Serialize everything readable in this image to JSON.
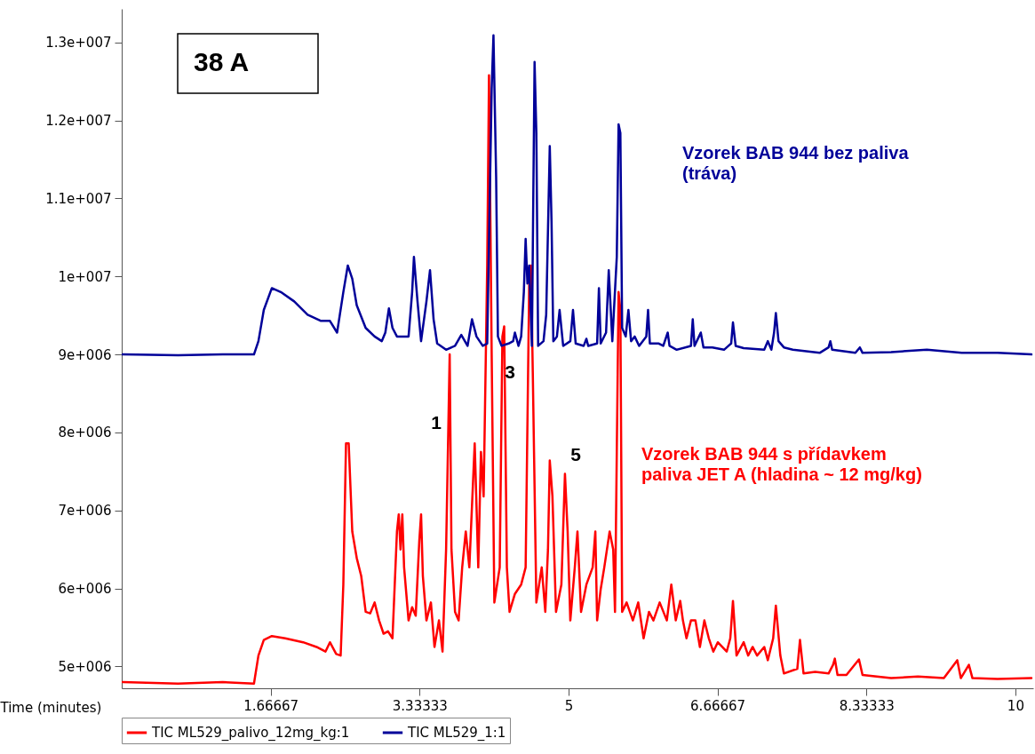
{
  "chart_data": {
    "type": "line",
    "xlabel": "Time (minutes)",
    "legend": "bottom",
    "xlim": [
      0,
      10.2
    ],
    "xticks": [
      1.66667,
      3.33333,
      5,
      6.66667,
      8.33333,
      10
    ],
    "ylim": [
      4720000.0,
      13430000.0
    ],
    "yticks": [
      {
        "value": 5000000.0,
        "label": "5e+006"
      },
      {
        "value": 6000000.0,
        "label": "6e+006"
      },
      {
        "value": 7000000.0,
        "label": "7e+006"
      },
      {
        "value": 8000000.0,
        "label": "8e+006"
      },
      {
        "value": 9000000.0,
        "label": "9e+006"
      },
      {
        "value": 10000000.0,
        "label": "1e+007"
      },
      {
        "value": 11000000.0,
        "label": "1.1e+007"
      },
      {
        "value": 12000000.0,
        "label": "1.2e+007"
      },
      {
        "value": 13000000.0,
        "label": "1.3e+007"
      }
    ],
    "annotations": [
      "38 A",
      "Vzorek BAB 944 bez paliva\n(tráva)",
      "Vzorek BAB 944 s přídavkem\npaliva JET A (hladina ~ 12 mg/kg)",
      "1",
      "3",
      "5"
    ],
    "series": [
      {
        "name": "TIC ML529_palivo_12mg_kg:1",
        "color": "#ff0000",
        "x": [
          0.01,
          0.63,
          1.13,
          1.48,
          1.53,
          1.59,
          1.68,
          1.83,
          2.03,
          2.18,
          2.28,
          2.33,
          2.4,
          2.45,
          2.48,
          2.51,
          2.54,
          2.58,
          2.63,
          2.68,
          2.73,
          2.78,
          2.83,
          2.88,
          2.93,
          2.98,
          3.03,
          3.08,
          3.1,
          3.12,
          3.14,
          3.16,
          3.21,
          3.25,
          3.29,
          3.33,
          3.35,
          3.37,
          3.41,
          3.46,
          3.5,
          3.55,
          3.59,
          3.63,
          3.67,
          3.69,
          3.73,
          3.77,
          3.81,
          3.85,
          3.89,
          3.95,
          3.99,
          4.02,
          4.05,
          4.09,
          4.11,
          4.14,
          4.17,
          4.23,
          4.26,
          4.28,
          4.31,
          4.34,
          4.4,
          4.47,
          4.52,
          4.56,
          4.58,
          4.6,
          4.64,
          4.7,
          4.74,
          4.77,
          4.79,
          4.82,
          4.86,
          4.92,
          4.96,
          4.99,
          5.02,
          5.07,
          5.1,
          5.14,
          5.2,
          5.27,
          5.3,
          5.32,
          5.36,
          5.4,
          5.46,
          5.5,
          5.52,
          5.56,
          5.58,
          5.6,
          5.65,
          5.72,
          5.78,
          5.84,
          5.9,
          5.95,
          6.02,
          6.1,
          6.15,
          6.2,
          6.25,
          6.28,
          6.32,
          6.37,
          6.42,
          6.47,
          6.52,
          6.57,
          6.62,
          6.67,
          6.72,
          6.77,
          6.81,
          6.84,
          6.88,
          6.96,
          7.01,
          7.06,
          7.11,
          7.19,
          7.23,
          7.29,
          7.32,
          7.37,
          7.41,
          7.56,
          7.59,
          7.63,
          7.76,
          7.91,
          7.96,
          7.98,
          8.01,
          8.11,
          8.25,
          8.29,
          8.61,
          8.91,
          9.2,
          9.35,
          9.39,
          9.48,
          9.52,
          9.8,
          10.18
        ],
        "values": [
          4800000.0,
          4780000.0,
          4800000.0,
          4780000.0,
          5140000.0,
          5340000.0,
          5390000.0,
          5360000.0,
          5310000.0,
          5250000.0,
          5190000.0,
          5310000.0,
          5160000.0,
          5140000.0,
          6050000.0,
          7860000.0,
          7860000.0,
          6730000.0,
          6390000.0,
          6160000.0,
          5700000.0,
          5680000.0,
          5820000.0,
          5590000.0,
          5420000.0,
          5450000.0,
          5360000.0,
          6730000.0,
          6950000.0,
          6500000.0,
          6950000.0,
          6270000.0,
          5590000.0,
          5760000.0,
          5650000.0,
          6610000.0,
          6950000.0,
          6160000.0,
          5590000.0,
          5820000.0,
          5250000.0,
          5590000.0,
          5190000.0,
          6500000.0,
          9000000.0,
          6500000.0,
          5700000.0,
          5590000.0,
          6270000.0,
          6730000.0,
          6270000.0,
          7860000.0,
          6270000.0,
          7750000.0,
          7180000.0,
          10140000.0,
          12580000.0,
          9000000.0,
          5820000.0,
          6270000.0,
          9230000.0,
          9360000.0,
          6270000.0,
          5700000.0,
          5930000.0,
          6050000.0,
          6270000.0,
          9910000.0,
          10140000.0,
          8770000.0,
          5820000.0,
          6270000.0,
          5700000.0,
          6500000.0,
          7640000.0,
          7180000.0,
          5700000.0,
          6050000.0,
          7470000.0,
          6730000.0,
          5590000.0,
          6270000.0,
          6730000.0,
          5700000.0,
          6050000.0,
          6270000.0,
          6730000.0,
          5590000.0,
          5990000.0,
          6270000.0,
          6730000.0,
          6500000.0,
          5700000.0,
          9800000.0,
          9570000.0,
          5700000.0,
          5820000.0,
          5590000.0,
          5820000.0,
          5360000.0,
          5700000.0,
          5590000.0,
          5820000.0,
          5590000.0,
          6050000.0,
          5590000.0,
          5840000.0,
          5590000.0,
          5360000.0,
          5590000.0,
          5590000.0,
          5250000.0,
          5590000.0,
          5360000.0,
          5190000.0,
          5310000.0,
          5250000.0,
          5190000.0,
          5360000.0,
          5840000.0,
          5140000.0,
          5310000.0,
          5140000.0,
          5250000.0,
          5140000.0,
          5250000.0,
          5080000.0,
          5360000.0,
          5780000.0,
          5140000.0,
          4910000.0,
          4970000.0,
          5340000.0,
          4910000.0,
          4930000.0,
          4910000.0,
          5020000.0,
          5100000.0,
          4890000.0,
          4890000.0,
          5090000.0,
          4890000.0,
          4850000.0,
          4870000.0,
          4850000.0,
          5080000.0,
          4850000.0,
          5020000.0,
          4850000.0,
          4840000.0,
          4850000.0
        ]
      },
      {
        "name": "TIC ML529_1:1",
        "color": "#000099",
        "x": [
          0.01,
          0.63,
          1.13,
          1.48,
          1.53,
          1.59,
          1.68,
          1.78,
          1.93,
          2.08,
          2.23,
          2.33,
          2.41,
          2.48,
          2.53,
          2.58,
          2.63,
          2.73,
          2.83,
          2.91,
          2.95,
          2.99,
          3.03,
          3.08,
          3.21,
          3.25,
          3.27,
          3.31,
          3.35,
          3.41,
          3.45,
          3.49,
          3.53,
          3.63,
          3.73,
          3.8,
          3.87,
          3.92,
          3.97,
          4.04,
          4.09,
          4.14,
          4.16,
          4.19,
          4.21,
          4.25,
          4.33,
          4.38,
          4.4,
          4.44,
          4.47,
          4.5,
          4.52,
          4.54,
          4.56,
          4.59,
          4.62,
          4.64,
          4.66,
          4.72,
          4.75,
          4.79,
          4.81,
          4.83,
          4.87,
          4.9,
          4.94,
          5.02,
          5.05,
          5.08,
          5.17,
          5.2,
          5.22,
          5.32,
          5.34,
          5.36,
          5.42,
          5.45,
          5.49,
          5.54,
          5.56,
          5.58,
          5.6,
          5.64,
          5.67,
          5.7,
          5.74,
          5.79,
          5.87,
          5.89,
          5.91,
          6.01,
          6.06,
          6.11,
          6.13,
          6.21,
          6.37,
          6.39,
          6.41,
          6.46,
          6.48,
          6.51,
          6.61,
          6.74,
          6.79,
          6.82,
          6.84,
          6.87,
          6.96,
          7.19,
          7.23,
          7.27,
          7.3,
          7.32,
          7.35,
          7.41,
          7.51,
          7.81,
          7.91,
          7.93,
          7.95,
          8.21,
          8.26,
          8.29,
          8.61,
          9.01,
          9.4,
          9.8,
          10.18
        ],
        "values": [
          9000000.0,
          8990000.0,
          9000000.0,
          9000000.0,
          9170000.0,
          9570000.0,
          9850000.0,
          9800000.0,
          9680000.0,
          9510000.0,
          9430000.0,
          9430000.0,
          9280000.0,
          9800000.0,
          10140000.0,
          9970000.0,
          9630000.0,
          9340000.0,
          9230000.0,
          9170000.0,
          9280000.0,
          9590000.0,
          9340000.0,
          9230000.0,
          9230000.0,
          9800000.0,
          10250000.0,
          9680000.0,
          9170000.0,
          9680000.0,
          10080000.0,
          9450000.0,
          9140000.0,
          9060000.0,
          9110000.0,
          9250000.0,
          9110000.0,
          9450000.0,
          9230000.0,
          9110000.0,
          9140000.0,
          12410000.0,
          13090000.0,
          11270000.0,
          9230000.0,
          9110000.0,
          9140000.0,
          9170000.0,
          9280000.0,
          9110000.0,
          9230000.0,
          9800000.0,
          10480000.0,
          9910000.0,
          10140000.0,
          9110000.0,
          12750000.0,
          11840000.0,
          9110000.0,
          9170000.0,
          9510000.0,
          11670000.0,
          10700000.0,
          9170000.0,
          9230000.0,
          9570000.0,
          9110000.0,
          9170000.0,
          9570000.0,
          9140000.0,
          9110000.0,
          9200000.0,
          9110000.0,
          9140000.0,
          9850000.0,
          9140000.0,
          9280000.0,
          10080000.0,
          9170000.0,
          10250000.0,
          11950000.0,
          11840000.0,
          9340000.0,
          9230000.0,
          9570000.0,
          9170000.0,
          9230000.0,
          9110000.0,
          9230000.0,
          9570000.0,
          9140000.0,
          9140000.0,
          9110000.0,
          9280000.0,
          9110000.0,
          9060000.0,
          9110000.0,
          9450000.0,
          9110000.0,
          9230000.0,
          9280000.0,
          9090000.0,
          9090000.0,
          9060000.0,
          9110000.0,
          9140000.0,
          9410000.0,
          9110000.0,
          9080000.0,
          9060000.0,
          9170000.0,
          9060000.0,
          9280000.0,
          9530000.0,
          9170000.0,
          9090000.0,
          9060000.0,
          9020000.0,
          9090000.0,
          9170000.0,
          9060000.0,
          9020000.0,
          9090000.0,
          9020000.0,
          9030000.0,
          9060000.0,
          9020000.0,
          9020000.0,
          9000000.0
        ]
      }
    ]
  }
}
